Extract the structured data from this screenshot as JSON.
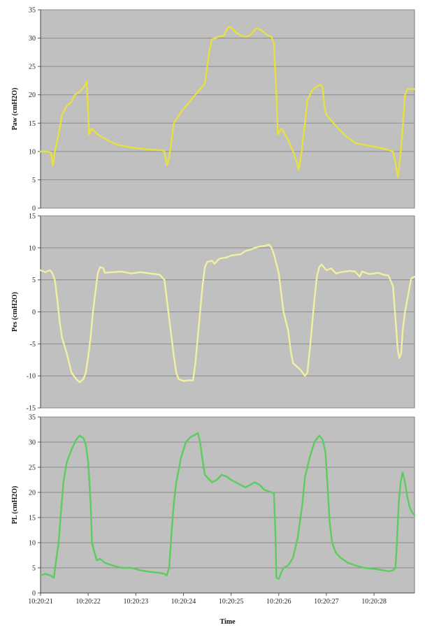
{
  "chart_data": [
    {
      "type": "line",
      "ylabel": "Paw (cmH2O)",
      "ylim": [
        0,
        35
      ],
      "yticks": [
        "0",
        "5",
        "10",
        "15",
        "20",
        "25",
        "30",
        "35"
      ],
      "xlim": [
        0,
        7.85
      ],
      "grid": "horizontal",
      "plot_background": "#c0c0c0",
      "series": [
        {
          "color": "#e8e040",
          "points": [
            [
              0,
              10
            ],
            [
              0.15,
              10
            ],
            [
              0.22,
              9.8
            ],
            [
              0.26,
              7.5
            ],
            [
              0.3,
              10
            ],
            [
              0.38,
              13
            ],
            [
              0.45,
              16.5
            ],
            [
              0.55,
              18
            ],
            [
              0.65,
              18.8
            ],
            [
              0.72,
              20
            ],
            [
              0.82,
              20.5
            ],
            [
              0.92,
              21.5
            ],
            [
              0.97,
              22.3
            ],
            [
              1.02,
              13
            ],
            [
              1.07,
              14
            ],
            [
              1.2,
              13
            ],
            [
              1.4,
              12
            ],
            [
              1.6,
              11.2
            ],
            [
              1.9,
              10.7
            ],
            [
              2.2,
              10.4
            ],
            [
              2.55,
              10.2
            ],
            [
              2.6,
              10
            ],
            [
              2.65,
              7.5
            ],
            [
              2.7,
              9
            ],
            [
              2.8,
              15
            ],
            [
              2.95,
              17
            ],
            [
              3.1,
              18.5
            ],
            [
              3.25,
              20
            ],
            [
              3.35,
              21
            ],
            [
              3.45,
              22
            ],
            [
              3.55,
              28
            ],
            [
              3.6,
              29.8
            ],
            [
              3.75,
              30.3
            ],
            [
              3.85,
              30.4
            ],
            [
              3.9,
              31.4
            ],
            [
              3.95,
              32
            ],
            [
              4.0,
              31.9
            ],
            [
              4.1,
              31
            ],
            [
              4.2,
              30.5
            ],
            [
              4.3,
              30.2
            ],
            [
              4.4,
              30.5
            ],
            [
              4.5,
              31.5
            ],
            [
              4.55,
              31.8
            ],
            [
              4.65,
              31.3
            ],
            [
              4.75,
              30.6
            ],
            [
              4.85,
              30.2
            ],
            [
              4.9,
              29
            ],
            [
              4.95,
              20
            ],
            [
              4.98,
              13
            ],
            [
              5.05,
              14
            ],
            [
              5.1,
              13.5
            ],
            [
              5.2,
              12
            ],
            [
              5.3,
              10
            ],
            [
              5.38,
              8
            ],
            [
              5.42,
              6.8
            ],
            [
              5.48,
              10
            ],
            [
              5.55,
              15
            ],
            [
              5.6,
              19
            ],
            [
              5.7,
              20.8
            ],
            [
              5.8,
              21.5
            ],
            [
              5.88,
              21.8
            ],
            [
              5.92,
              21.3
            ],
            [
              5.96,
              18
            ],
            [
              6.0,
              16.5
            ],
            [
              6.2,
              14.5
            ],
            [
              6.4,
              12.8
            ],
            [
              6.6,
              11.5
            ],
            [
              6.9,
              11
            ],
            [
              7.2,
              10.5
            ],
            [
              7.4,
              10
            ],
            [
              7.45,
              8
            ],
            [
              7.5,
              5.5
            ],
            [
              7.55,
              9
            ],
            [
              7.6,
              14
            ],
            [
              7.65,
              20
            ],
            [
              7.7,
              21
            ],
            [
              7.85,
              21
            ]
          ]
        }
      ]
    },
    {
      "type": "line",
      "ylabel": "Pes (cmH2O)",
      "ylim": [
        -15,
        15
      ],
      "yticks": [
        "-15",
        "-10",
        "-5",
        "0",
        "5",
        "10",
        "15"
      ],
      "xlim": [
        0,
        7.85
      ],
      "grid": "horizontal",
      "plot_background": "#c0c0c0",
      "series": [
        {
          "color": "#f0f0a0",
          "points": [
            [
              0,
              6.5
            ],
            [
              0.1,
              6.2
            ],
            [
              0.2,
              6.5
            ],
            [
              0.25,
              6
            ],
            [
              0.3,
              5
            ],
            [
              0.35,
              2
            ],
            [
              0.4,
              -1.5
            ],
            [
              0.45,
              -4
            ],
            [
              0.55,
              -6.5
            ],
            [
              0.65,
              -9.5
            ],
            [
              0.75,
              -10.5
            ],
            [
              0.82,
              -11
            ],
            [
              0.9,
              -10.5
            ],
            [
              0.95,
              -9.5
            ],
            [
              1.0,
              -7
            ],
            [
              1.05,
              -4
            ],
            [
              1.1,
              0
            ],
            [
              1.15,
              3
            ],
            [
              1.2,
              6
            ],
            [
              1.25,
              7
            ],
            [
              1.32,
              6.8
            ],
            [
              1.35,
              6.1
            ],
            [
              1.5,
              6.2
            ],
            [
              1.7,
              6.3
            ],
            [
              1.9,
              6
            ],
            [
              2.1,
              6.2
            ],
            [
              2.3,
              6
            ],
            [
              2.5,
              5.8
            ],
            [
              2.6,
              5
            ],
            [
              2.65,
              2
            ],
            [
              2.7,
              -1
            ],
            [
              2.75,
              -4
            ],
            [
              2.8,
              -7
            ],
            [
              2.85,
              -9.5
            ],
            [
              2.9,
              -10.5
            ],
            [
              3.0,
              -10.8
            ],
            [
              3.1,
              -10.7
            ],
            [
              3.2,
              -10.7
            ],
            [
              3.25,
              -8
            ],
            [
              3.3,
              -4
            ],
            [
              3.35,
              0
            ],
            [
              3.4,
              4
            ],
            [
              3.45,
              7
            ],
            [
              3.5,
              7.8
            ],
            [
              3.6,
              8
            ],
            [
              3.65,
              7.5
            ],
            [
              3.75,
              8.3
            ],
            [
              3.9,
              8.5
            ],
            [
              4.0,
              8.8
            ],
            [
              4.1,
              8.9
            ],
            [
              4.2,
              9
            ],
            [
              4.3,
              9.5
            ],
            [
              4.4,
              9.7
            ],
            [
              4.5,
              10
            ],
            [
              4.6,
              10.2
            ],
            [
              4.7,
              10.3
            ],
            [
              4.8,
              10.5
            ],
            [
              4.85,
              10
            ],
            [
              4.9,
              9
            ],
            [
              5.0,
              6
            ],
            [
              5.05,
              3
            ],
            [
              5.1,
              0
            ],
            [
              5.2,
              -3
            ],
            [
              5.25,
              -6
            ],
            [
              5.3,
              -8
            ],
            [
              5.45,
              -9
            ],
            [
              5.55,
              -10
            ],
            [
              5.6,
              -9.5
            ],
            [
              5.65,
              -6
            ],
            [
              5.7,
              -2
            ],
            [
              5.75,
              2
            ],
            [
              5.8,
              5.5
            ],
            [
              5.85,
              7
            ],
            [
              5.9,
              7.4
            ],
            [
              6.0,
              6.5
            ],
            [
              6.1,
              6.8
            ],
            [
              6.2,
              6
            ],
            [
              6.3,
              6.2
            ],
            [
              6.5,
              6.4
            ],
            [
              6.6,
              6.3
            ],
            [
              6.7,
              5.5
            ],
            [
              6.75,
              6.3
            ],
            [
              6.9,
              5.9
            ],
            [
              7.1,
              6.1
            ],
            [
              7.2,
              5.8
            ],
            [
              7.3,
              5.7
            ],
            [
              7.4,
              4
            ],
            [
              7.45,
              -1
            ],
            [
              7.5,
              -6
            ],
            [
              7.53,
              -7.2
            ],
            [
              7.57,
              -6.5
            ],
            [
              7.6,
              -3
            ],
            [
              7.65,
              0
            ],
            [
              7.7,
              2
            ],
            [
              7.75,
              4
            ],
            [
              7.78,
              5.2
            ],
            [
              7.85,
              5.5
            ]
          ]
        }
      ]
    },
    {
      "type": "line",
      "ylabel": "PL (cmH2O)",
      "xlabel": "Time",
      "ylim": [
        0,
        35
      ],
      "yticks": [
        "0",
        "5",
        "10",
        "15",
        "20",
        "25",
        "30",
        "35"
      ],
      "xlim": [
        0,
        7.85
      ],
      "xticks": [
        {
          "x": 0,
          "label": "10:20:21"
        },
        {
          "x": 1,
          "label": "10:20:22"
        },
        {
          "x": 2,
          "label": "10:20:23"
        },
        {
          "x": 3,
          "label": "10:20:24"
        },
        {
          "x": 4,
          "label": "10:20:25"
        },
        {
          "x": 5,
          "label": "10:20:26"
        },
        {
          "x": 6,
          "label": "10:20:27"
        },
        {
          "x": 7,
          "label": "10:20:28"
        }
      ],
      "grid": "horizontal",
      "plot_background": "#c0c0c0",
      "series": [
        {
          "color": "#5ccc5c",
          "points": [
            [
              0,
              3.5
            ],
            [
              0.1,
              3.8
            ],
            [
              0.2,
              3.5
            ],
            [
              0.28,
              3
            ],
            [
              0.32,
              6
            ],
            [
              0.38,
              10
            ],
            [
              0.42,
              15
            ],
            [
              0.48,
              22
            ],
            [
              0.55,
              26
            ],
            [
              0.65,
              28.5
            ],
            [
              0.75,
              30.5
            ],
            [
              0.82,
              31.3
            ],
            [
              0.9,
              30.8
            ],
            [
              0.95,
              29.5
            ],
            [
              1.0,
              26
            ],
            [
              1.05,
              18
            ],
            [
              1.08,
              10
            ],
            [
              1.12,
              8.5
            ],
            [
              1.18,
              6.5
            ],
            [
              1.25,
              6.8
            ],
            [
              1.35,
              6
            ],
            [
              1.5,
              5.5
            ],
            [
              1.7,
              5
            ],
            [
              1.9,
              5
            ],
            [
              2.1,
              4.5
            ],
            [
              2.3,
              4.2
            ],
            [
              2.5,
              4
            ],
            [
              2.6,
              3.8
            ],
            [
              2.65,
              3.5
            ],
            [
              2.7,
              5
            ],
            [
              2.75,
              12
            ],
            [
              2.8,
              18
            ],
            [
              2.85,
              22
            ],
            [
              2.95,
              27
            ],
            [
              3.05,
              30
            ],
            [
              3.15,
              31
            ],
            [
              3.25,
              31.5
            ],
            [
              3.3,
              31.8
            ],
            [
              3.35,
              30
            ],
            [
              3.4,
              26.5
            ],
            [
              3.45,
              23.5
            ],
            [
              3.5,
              23
            ],
            [
              3.6,
              22
            ],
            [
              3.7,
              22.5
            ],
            [
              3.8,
              23.5
            ],
            [
              3.9,
              23.2
            ],
            [
              4.0,
              22.5
            ],
            [
              4.1,
              22
            ],
            [
              4.2,
              21.5
            ],
            [
              4.3,
              21
            ],
            [
              4.4,
              21.5
            ],
            [
              4.5,
              22
            ],
            [
              4.6,
              21.5
            ],
            [
              4.7,
              20.5
            ],
            [
              4.8,
              20.2
            ],
            [
              4.9,
              19.8
            ],
            [
              4.93,
              12
            ],
            [
              4.95,
              3
            ],
            [
              5.0,
              2.8
            ],
            [
              5.05,
              4
            ],
            [
              5.1,
              5
            ],
            [
              5.2,
              5.5
            ],
            [
              5.3,
              7
            ],
            [
              5.4,
              11
            ],
            [
              5.5,
              18
            ],
            [
              5.55,
              23
            ],
            [
              5.65,
              27
            ],
            [
              5.75,
              30
            ],
            [
              5.85,
              31.3
            ],
            [
              5.92,
              30.5
            ],
            [
              5.98,
              28
            ],
            [
              6.02,
              22
            ],
            [
              6.07,
              14
            ],
            [
              6.12,
              10
            ],
            [
              6.2,
              8
            ],
            [
              6.3,
              7
            ],
            [
              6.45,
              6
            ],
            [
              6.6,
              5.5
            ],
            [
              6.8,
              5
            ],
            [
              7.0,
              4.8
            ],
            [
              7.2,
              4.5
            ],
            [
              7.3,
              4.3
            ],
            [
              7.4,
              4.5
            ],
            [
              7.45,
              5
            ],
            [
              7.48,
              10
            ],
            [
              7.52,
              18
            ],
            [
              7.56,
              22
            ],
            [
              7.6,
              24
            ],
            [
              7.65,
              22
            ],
            [
              7.7,
              19
            ],
            [
              7.75,
              17
            ],
            [
              7.8,
              16
            ],
            [
              7.85,
              15.5
            ]
          ]
        }
      ]
    }
  ]
}
